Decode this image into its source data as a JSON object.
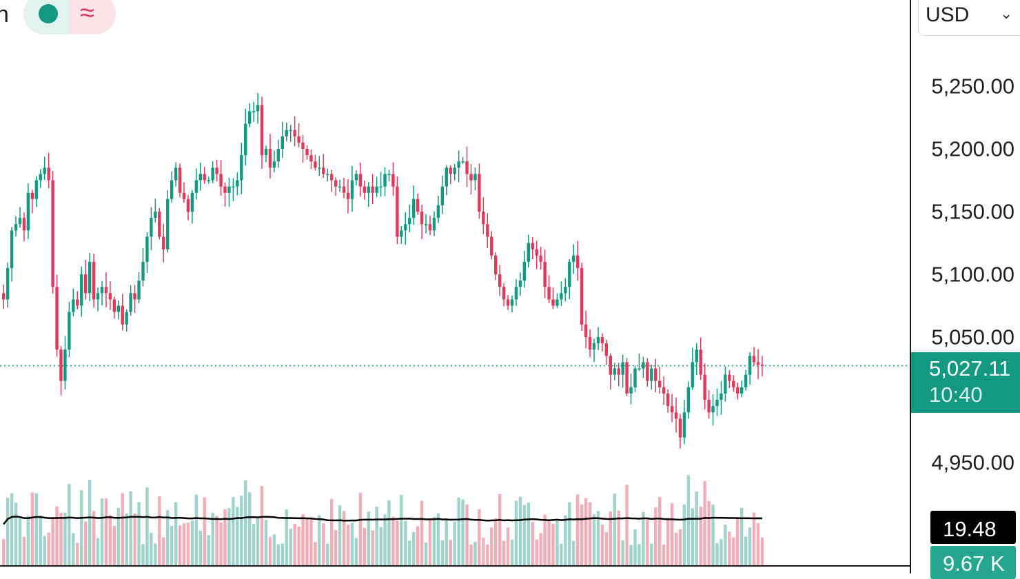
{
  "header": {
    "title_fragment": "n",
    "indicator_dot_icon": "green-circle-icon",
    "indicator_wave_icon": "approx-wave-icon",
    "currency": "USD"
  },
  "colors": {
    "up": "#139981",
    "down": "#e3385a",
    "up_volume": "#9fd3cb",
    "down_volume": "#f2aeb6",
    "last_price_line": "#139981",
    "volume_ma": "#000000"
  },
  "axis": {
    "ticks": [
      "5,250.00",
      "5,200.00",
      "5,150.00",
      "5,100.00",
      "5,050.00",
      "4,950.00"
    ]
  },
  "last_price": {
    "value": "5,027.11",
    "countdown": "10:40"
  },
  "volume_panel": {
    "ma_value": "19.48 K",
    "last_value": "9.67 K"
  },
  "chart_data": {
    "type": "candlestick",
    "y_ticks": [
      5250,
      5200,
      5150,
      5100,
      5050,
      4950
    ],
    "ylim": [
      4930,
      5290
    ],
    "last_price": 5027.11,
    "closes": [
      5080,
      5105,
      5135,
      5140,
      5145,
      5135,
      5165,
      5160,
      5175,
      5180,
      5185,
      5175,
      5090,
      5040,
      5015,
      5040,
      5070,
      5080,
      5075,
      5100,
      5085,
      5110,
      5080,
      5085,
      5090,
      5085,
      5080,
      5070,
      5075,
      5060,
      5070,
      5085,
      5080,
      5095,
      5110,
      5130,
      5145,
      5150,
      5130,
      5120,
      5160,
      5175,
      5185,
      5165,
      5160,
      5150,
      5165,
      5175,
      5180,
      5175,
      5175,
      5185,
      5180,
      5170,
      5165,
      5170,
      5170,
      5175,
      5195,
      5220,
      5230,
      5230,
      5235,
      5195,
      5200,
      5185,
      5190,
      5200,
      5210,
      5215,
      5215,
      5210,
      5205,
      5200,
      5195,
      5190,
      5185,
      5185,
      5180,
      5180,
      5175,
      5170,
      5170,
      5165,
      5160,
      5175,
      5180,
      5170,
      5165,
      5170,
      5165,
      5170,
      5170,
      5180,
      5180,
      5170,
      5130,
      5135,
      5140,
      5145,
      5160,
      5150,
      5140,
      5140,
      5135,
      5145,
      5155,
      5170,
      5185,
      5180,
      5185,
      5190,
      5190,
      5180,
      5175,
      5180,
      5150,
      5140,
      5130,
      5115,
      5100,
      5090,
      5080,
      5075,
      5080,
      5090,
      5095,
      5110,
      5125,
      5120,
      5115,
      5110,
      5090,
      5080,
      5075,
      5080,
      5085,
      5090,
      5110,
      5115,
      5105,
      5060,
      5050,
      5040,
      5045,
      5050,
      5045,
      5035,
      5020,
      5025,
      5020,
      5030,
      5005,
      5010,
      5025,
      5025,
      5030,
      5015,
      5025,
      5015,
      5010,
      5005,
      4995,
      4990,
      4985,
      4970,
      4990,
      5010,
      5030,
      5040,
      5020,
      5000,
      4990,
      4995,
      5000,
      5005,
      5020,
      5015,
      5010,
      5005,
      5010,
      5020,
      5035,
      5030,
      5028,
      5027.11
    ],
    "volume_y_max": 40,
    "volume_ma_visible": true
  }
}
